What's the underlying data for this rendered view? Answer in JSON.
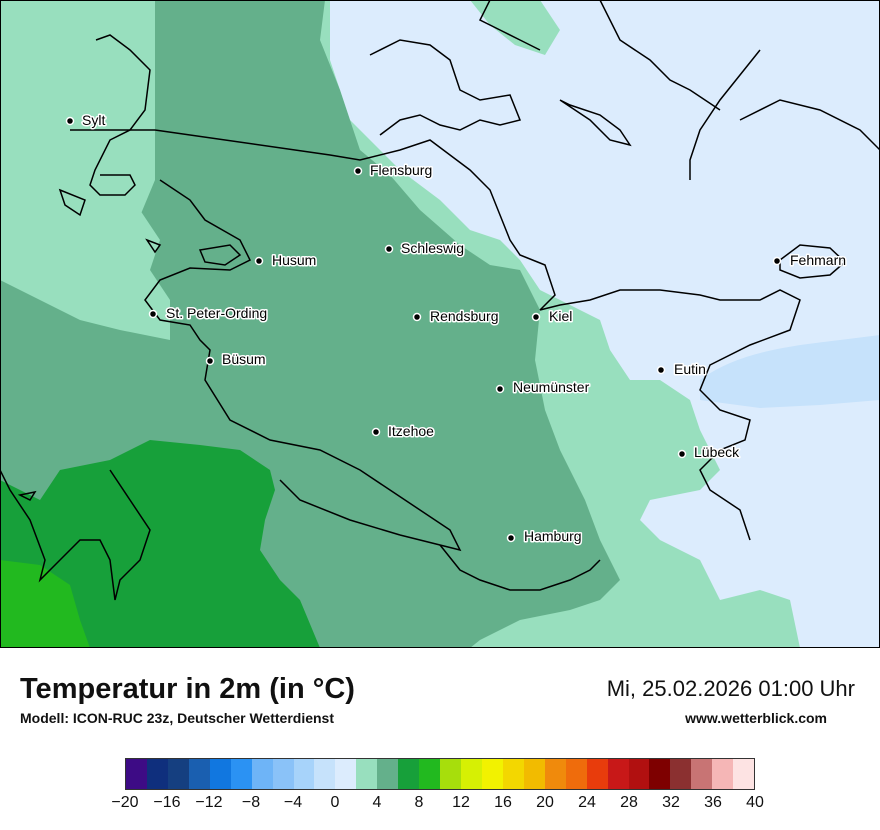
{
  "map": {
    "cities": [
      {
        "name": "Sylt"
      },
      {
        "name": "Flensburg"
      },
      {
        "name": "Schleswig"
      },
      {
        "name": "Husum"
      },
      {
        "name": "St. Peter-Ording"
      },
      {
        "name": "Rendsburg"
      },
      {
        "name": "Kiel"
      },
      {
        "name": "Fehmarn"
      },
      {
        "name": "Büsum"
      },
      {
        "name": "Eutin"
      },
      {
        "name": "Neumünster"
      },
      {
        "name": "Itzehoe"
      },
      {
        "name": "Lübeck"
      },
      {
        "name": "Hamburg"
      }
    ]
  },
  "footer": {
    "title": "Temperatur in 2m (in °C)",
    "model": "Modell: ICON-RUC 23z, Deutscher Wetterdienst",
    "datetime": "Mi, 25.02.2026 01:00 Uhr",
    "website": "www.wetterblick.com"
  },
  "colorbar": {
    "colors": [
      "#3d0b85",
      "#0f2f7d",
      "#153f80",
      "#1a5fb0",
      "#1177e0",
      "#2b92f3",
      "#6eb4f7",
      "#8ac2f8",
      "#a7d3fa",
      "#c6e2fb",
      "#dcecfd",
      "#98dfbe",
      "#64b08b",
      "#17a03a",
      "#22b91f",
      "#a7de0c",
      "#d6f004",
      "#f2f200",
      "#f3d700",
      "#f2bb00",
      "#f08a0c",
      "#ef6c0c",
      "#e83c0c",
      "#c81818",
      "#b11010",
      "#7e0000",
      "#8b3030",
      "#c87474",
      "#f5b6b6",
      "#fde3e3"
    ],
    "ticks": [
      "−20",
      "−16",
      "−12",
      "−8",
      "−4",
      "0",
      "4",
      "8",
      "12",
      "16",
      "20",
      "24",
      "28",
      "32",
      "36",
      "40"
    ]
  }
}
